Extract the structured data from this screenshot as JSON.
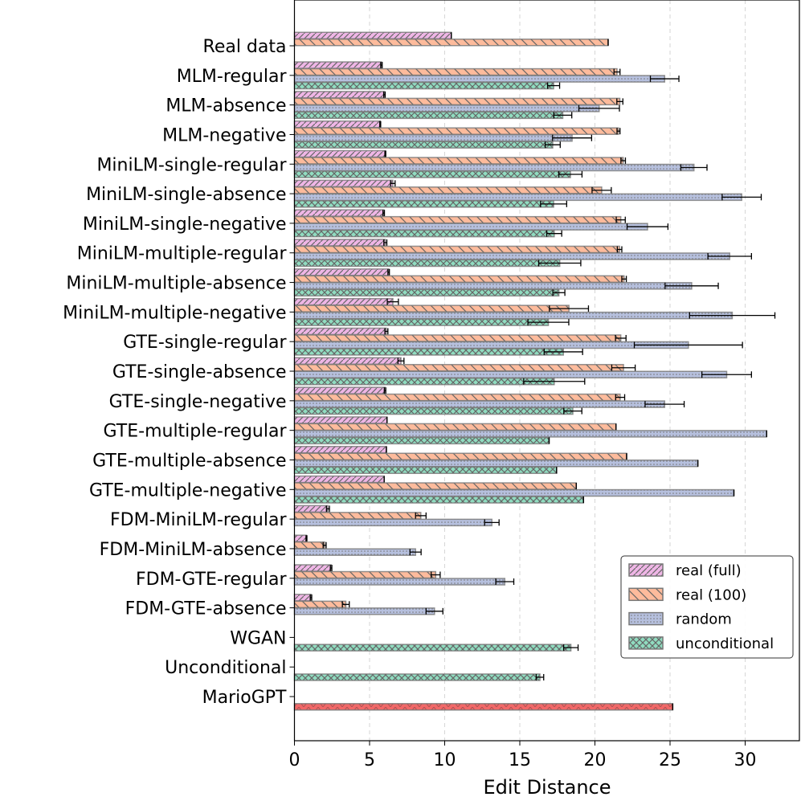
{
  "chart_data": {
    "type": "bar",
    "orientation": "horizontal",
    "title": "",
    "xlabel": "Edit Distance",
    "ylabel": "",
    "xlim": [
      0,
      33.5
    ],
    "xticks": [
      0,
      5,
      10,
      15,
      20,
      25,
      30
    ],
    "grid": "x, dashed",
    "legend_position": "lower-right",
    "categories": [
      "Real data",
      "MLM-regular",
      "MLM-absence",
      "MLM-negative",
      "MiniLM-single-regular",
      "MiniLM-single-absence",
      "MiniLM-single-negative",
      "MiniLM-multiple-regular",
      "MiniLM-multiple-absence",
      "MiniLM-multiple-negative",
      "GTE-single-regular",
      "GTE-single-absence",
      "GTE-single-negative",
      "GTE-multiple-regular",
      "GTE-multiple-absence",
      "GTE-multiple-negative",
      "FDM-MiniLM-regular",
      "FDM-MiniLM-absence",
      "FDM-GTE-regular",
      "FDM-GTE-absence",
      "WGAN",
      "Unconditional",
      "MarioGPT"
    ],
    "series": [
      {
        "name": "real (full)",
        "color": "#efb6e6",
        "hatch": "diag-right",
        "values": [
          10.44,
          5.79,
          5.99,
          5.71,
          6.05,
          6.55,
          5.94,
          6.05,
          6.27,
          6.55,
          6.12,
          7.09,
          6.03,
          6.16,
          6.12,
          5.97,
          2.23,
          0.8,
          2.44,
          1.1,
          null,
          null,
          null
        ],
        "errors": [
          0,
          0.05,
          0.05,
          0.03,
          0.03,
          0.15,
          0.05,
          0.1,
          0.05,
          0.37,
          0.1,
          0.2,
          0.05,
          0,
          0,
          0,
          0.1,
          0.03,
          0.05,
          0.05,
          null,
          null,
          null
        ]
      },
      {
        "name": "real (100)",
        "color": "#fdbb9c",
        "hatch": "diag-left",
        "values": [
          20.88,
          21.47,
          21.66,
          21.57,
          21.88,
          20.45,
          21.72,
          21.64,
          21.94,
          18.27,
          21.72,
          21.9,
          21.68,
          21.4,
          22.11,
          18.76,
          8.41,
          2.01,
          9.4,
          3.42,
          null,
          null,
          null
        ],
        "errors": [
          0,
          0.2,
          0.2,
          0.1,
          0.15,
          0.64,
          0.3,
          0.15,
          0.15,
          1.3,
          0.35,
          0.78,
          0.3,
          0,
          0,
          0,
          0.35,
          0.1,
          0.3,
          0.23,
          null,
          null,
          null
        ]
      },
      {
        "name": "random",
        "color": "#b6c0de",
        "hatch": "dots",
        "values": [
          null,
          24.64,
          20.28,
          18.48,
          26.59,
          29.77,
          23.5,
          28.97,
          26.44,
          29.14,
          26.22,
          28.77,
          24.64,
          31.43,
          26.85,
          29.25,
          13.14,
          8.06,
          14.0,
          9.32,
          null,
          null,
          null
        ],
        "errors": [
          null,
          0.95,
          1.35,
          1.3,
          0.87,
          1.3,
          1.36,
          1.45,
          1.77,
          2.84,
          3.6,
          1.65,
          1.3,
          0,
          0,
          0,
          0.48,
          0.37,
          0.6,
          0.56,
          null,
          null,
          null
        ]
      },
      {
        "name": "unconditional",
        "color": "#90dcc0",
        "hatch": "cross",
        "values": [
          null,
          17.25,
          17.86,
          17.19,
          18.37,
          17.25,
          17.29,
          17.66,
          17.6,
          16.9,
          17.9,
          17.29,
          18.53,
          16.95,
          17.45,
          19.24,
          null,
          null,
          null,
          null,
          18.4,
          16.34,
          25.18
        ],
        "errors": [
          null,
          0.4,
          0.6,
          0.5,
          0.77,
          0.87,
          0.5,
          1.4,
          0.4,
          1.36,
          1.28,
          2.03,
          0.6,
          0,
          0,
          0,
          null,
          null,
          null,
          null,
          0.48,
          0.25,
          0
        ]
      }
    ],
    "highlight": {
      "category": "MarioGPT",
      "color": "#f26868"
    }
  }
}
